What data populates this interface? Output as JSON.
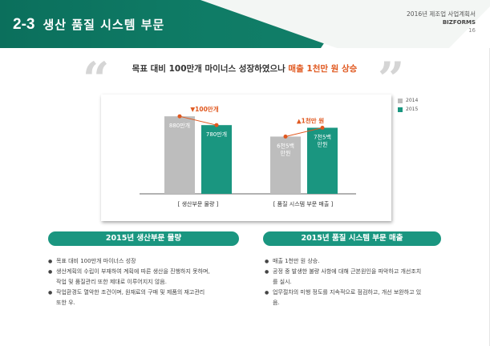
{
  "header": {
    "section_number": "2-3",
    "section_title": "생산 품질 시스템 부문",
    "doc_title": "2016년 제조업 사업계획서",
    "brand": "BIZFORMS",
    "page_number": "16"
  },
  "headline": {
    "prefix": "목표 대비 100만개 마이너스 성장하였으나 ",
    "highlight": "매출 1천만 원 상승"
  },
  "colors": {
    "accent_green": "#1a9680",
    "bar_gray": "#bdbdbd",
    "highlight_orange": "#e0581f"
  },
  "chart_data": {
    "type": "bar",
    "categories": [
      "[ 생산부문 물량 ]",
      "[ 품질 시스템 부문 매출 ]"
    ],
    "series": [
      {
        "name": "2014",
        "labels": [
          "880만개",
          "6천5백\n만원"
        ],
        "values": [
          880,
          650
        ]
      },
      {
        "name": "2015",
        "labels": [
          "780만개",
          "7천5백\n만원"
        ],
        "values": [
          780,
          750
        ]
      }
    ],
    "annotations": [
      {
        "category": "[ 생산부문 물량 ]",
        "direction": "down",
        "text": "100만개"
      },
      {
        "category": "[ 품질 시스템 부문 매출 ]",
        "direction": "up",
        "text": "1천만 원"
      }
    ],
    "legend_position": "right"
  },
  "left_section": {
    "title": "2015년 생산부문 물량",
    "bullets": [
      "목표 대비 100만개 마이너스 성장",
      "생산계획의 수립이 부재하여 계획에 따른 생산을 진행하지 못하며,\n작업 및 품질관리 또한 제대로 이루어지지 않음.",
      "작업환경도 열악한 조건이며, 원재료의 구매 및 제품의 재고관리\n또한 우."
    ]
  },
  "right_section": {
    "title": "2015년 품질 시스템 부문 매출",
    "bullets": [
      "매출 1천만 원 상승.",
      "공정 중 발생한 불량 사항에 대해 근본원인을 파악하고 개선조치\n를 실시.",
      "업무절차의 미행 정도를 지속적으로 점검하고, 개선 보완하고 있\n음."
    ]
  }
}
